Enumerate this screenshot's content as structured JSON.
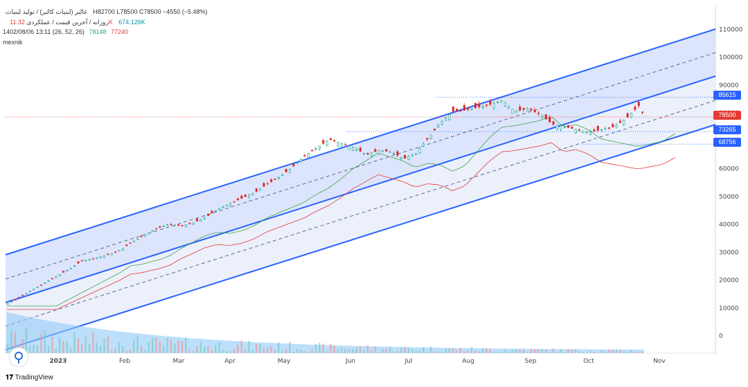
{
  "header": {
    "symbol_name": "غالبر (لبنیات کالبر) / تولید لبنیات",
    "ohlc_text": "H82700  L78500  C78500  −4550 (−5.48%)",
    "timeframe_label": "روزانه / آخرین قیمت / عملکردی",
    "volume_text": "11.32K",
    "avg_volume_text": "674.126K",
    "date_text": "1402/08/06 13:11 (26, 52, 26)",
    "ichimoku_a": "78148",
    "ichimoku_b": "77240",
    "author": "mexnik"
  },
  "price_tags": [
    {
      "value": "85615",
      "color": "#2962ff"
    },
    {
      "value": "78500",
      "color": "#e53935"
    },
    {
      "value": "73265",
      "color": "#2962ff"
    },
    {
      "value": "68756",
      "color": "#2962ff"
    }
  ],
  "footer": {
    "brand": "TradingView"
  },
  "colors": {
    "up": "#26a69a",
    "down": "#e53935",
    "channel": "#2962ff",
    "cloud": "#c8e6c9"
  },
  "chart_data": {
    "type": "candlestick",
    "y_ticks": [
      0,
      10000,
      20000,
      30000,
      40000,
      50000,
      60000,
      70000,
      80000,
      90000,
      100000,
      110000
    ],
    "y_tick_labels": [
      "0",
      "10000",
      "20000",
      "30000",
      "40000",
      "50000",
      "60000",
      "70000",
      "80000",
      "90000",
      "100000",
      "110000"
    ],
    "x_labels": [
      "2023",
      "Feb",
      "Mar",
      "Apr",
      "May",
      "Jun",
      "Jul",
      "Aug",
      "Sep",
      "Oct",
      "Nov"
    ],
    "price_levels": [
      85615,
      78500,
      73265,
      68756
    ],
    "close_series": [
      [
        0,
        11500
      ],
      [
        8,
        13500
      ],
      [
        16,
        15500
      ],
      [
        22,
        17000
      ],
      [
        28,
        18500
      ],
      [
        36,
        20500
      ],
      [
        44,
        22500
      ],
      [
        52,
        24500
      ],
      [
        60,
        27000
      ],
      [
        68,
        27500
      ],
      [
        76,
        28500
      ],
      [
        84,
        29500
      ],
      [
        92,
        31000
      ],
      [
        100,
        33500
      ],
      [
        110,
        36000
      ],
      [
        120,
        38500
      ],
      [
        130,
        40000
      ],
      [
        140,
        39500
      ],
      [
        150,
        40500
      ],
      [
        160,
        42500
      ],
      [
        170,
        45500
      ],
      [
        180,
        47500
      ],
      [
        190,
        49500
      ],
      [
        200,
        51500
      ],
      [
        210,
        54500
      ],
      [
        220,
        57000
      ],
      [
        230,
        60500
      ],
      [
        240,
        64500
      ],
      [
        250,
        67500
      ],
      [
        260,
        70500
      ],
      [
        270,
        69000
      ],
      [
        280,
        67500
      ],
      [
        290,
        65000
      ],
      [
        300,
        66500
      ],
      [
        310,
        66000
      ],
      [
        320,
        63500
      ],
      [
        330,
        65500
      ],
      [
        340,
        71000
      ],
      [
        350,
        76500
      ],
      [
        360,
        80500
      ],
      [
        370,
        81000
      ],
      [
        380,
        82000
      ],
      [
        390,
        83000
      ],
      [
        400,
        84500
      ],
      [
        410,
        80500
      ],
      [
        420,
        81500
      ],
      [
        430,
        79500
      ],
      [
        440,
        76000
      ],
      [
        450,
        75000
      ],
      [
        460,
        74000
      ],
      [
        470,
        73000
      ],
      [
        480,
        74000
      ],
      [
        490,
        75000
      ],
      [
        500,
        78000
      ],
      [
        510,
        82500
      ],
      [
        515,
        78500
      ]
    ]
  }
}
